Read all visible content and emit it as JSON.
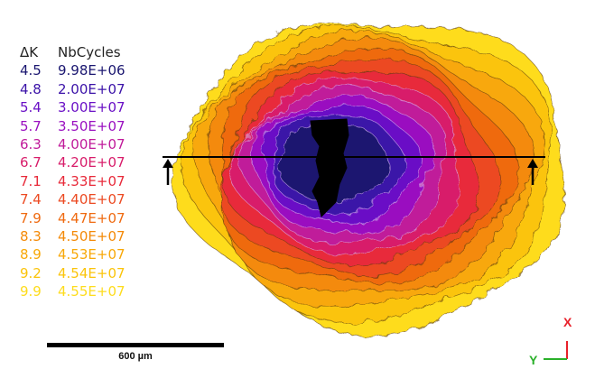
{
  "legend": {
    "header_dk": "ΔK",
    "header_cycles": "NbCycles",
    "rows": [
      {
        "dk": "4.5",
        "cycles": "9.98E+06",
        "color": "#1a1670"
      },
      {
        "dk": "4.8",
        "cycles": "2.00E+07",
        "color": "#3b12a8"
      },
      {
        "dk": "5.4",
        "cycles": "3.00E+07",
        "color": "#6a10c6"
      },
      {
        "dk": "5.7",
        "cycles": "3.50E+07",
        "color": "#9a10c0"
      },
      {
        "dk": "6.3",
        "cycles": "4.00E+07",
        "color": "#c01a9a"
      },
      {
        "dk": "6.7",
        "cycles": "4.20E+07",
        "color": "#d81c6a"
      },
      {
        "dk": "7.1",
        "cycles": "4.33E+07",
        "color": "#e82a3a"
      },
      {
        "dk": "7.4",
        "cycles": "4.40E+07",
        "color": "#ec4a22"
      },
      {
        "dk": "7.9",
        "cycles": "4.47E+07",
        "color": "#ef6a10"
      },
      {
        "dk": "8.3",
        "cycles": "4.50E+07",
        "color": "#f48a08"
      },
      {
        "dk": "8.9",
        "cycles": "4.53E+07",
        "color": "#f8a808"
      },
      {
        "dk": "9.2",
        "cycles": "4.54E+07",
        "color": "#fbc40a"
      },
      {
        "dk": "9.9",
        "cycles": "4.55E+07",
        "color": "#fedc1c"
      }
    ]
  },
  "scale_bar": {
    "label": "600 µm"
  },
  "axes": {
    "x_label": "X",
    "y_label": "Y",
    "color_x": "#e8202a",
    "color_y": "#2ab02a"
  }
}
